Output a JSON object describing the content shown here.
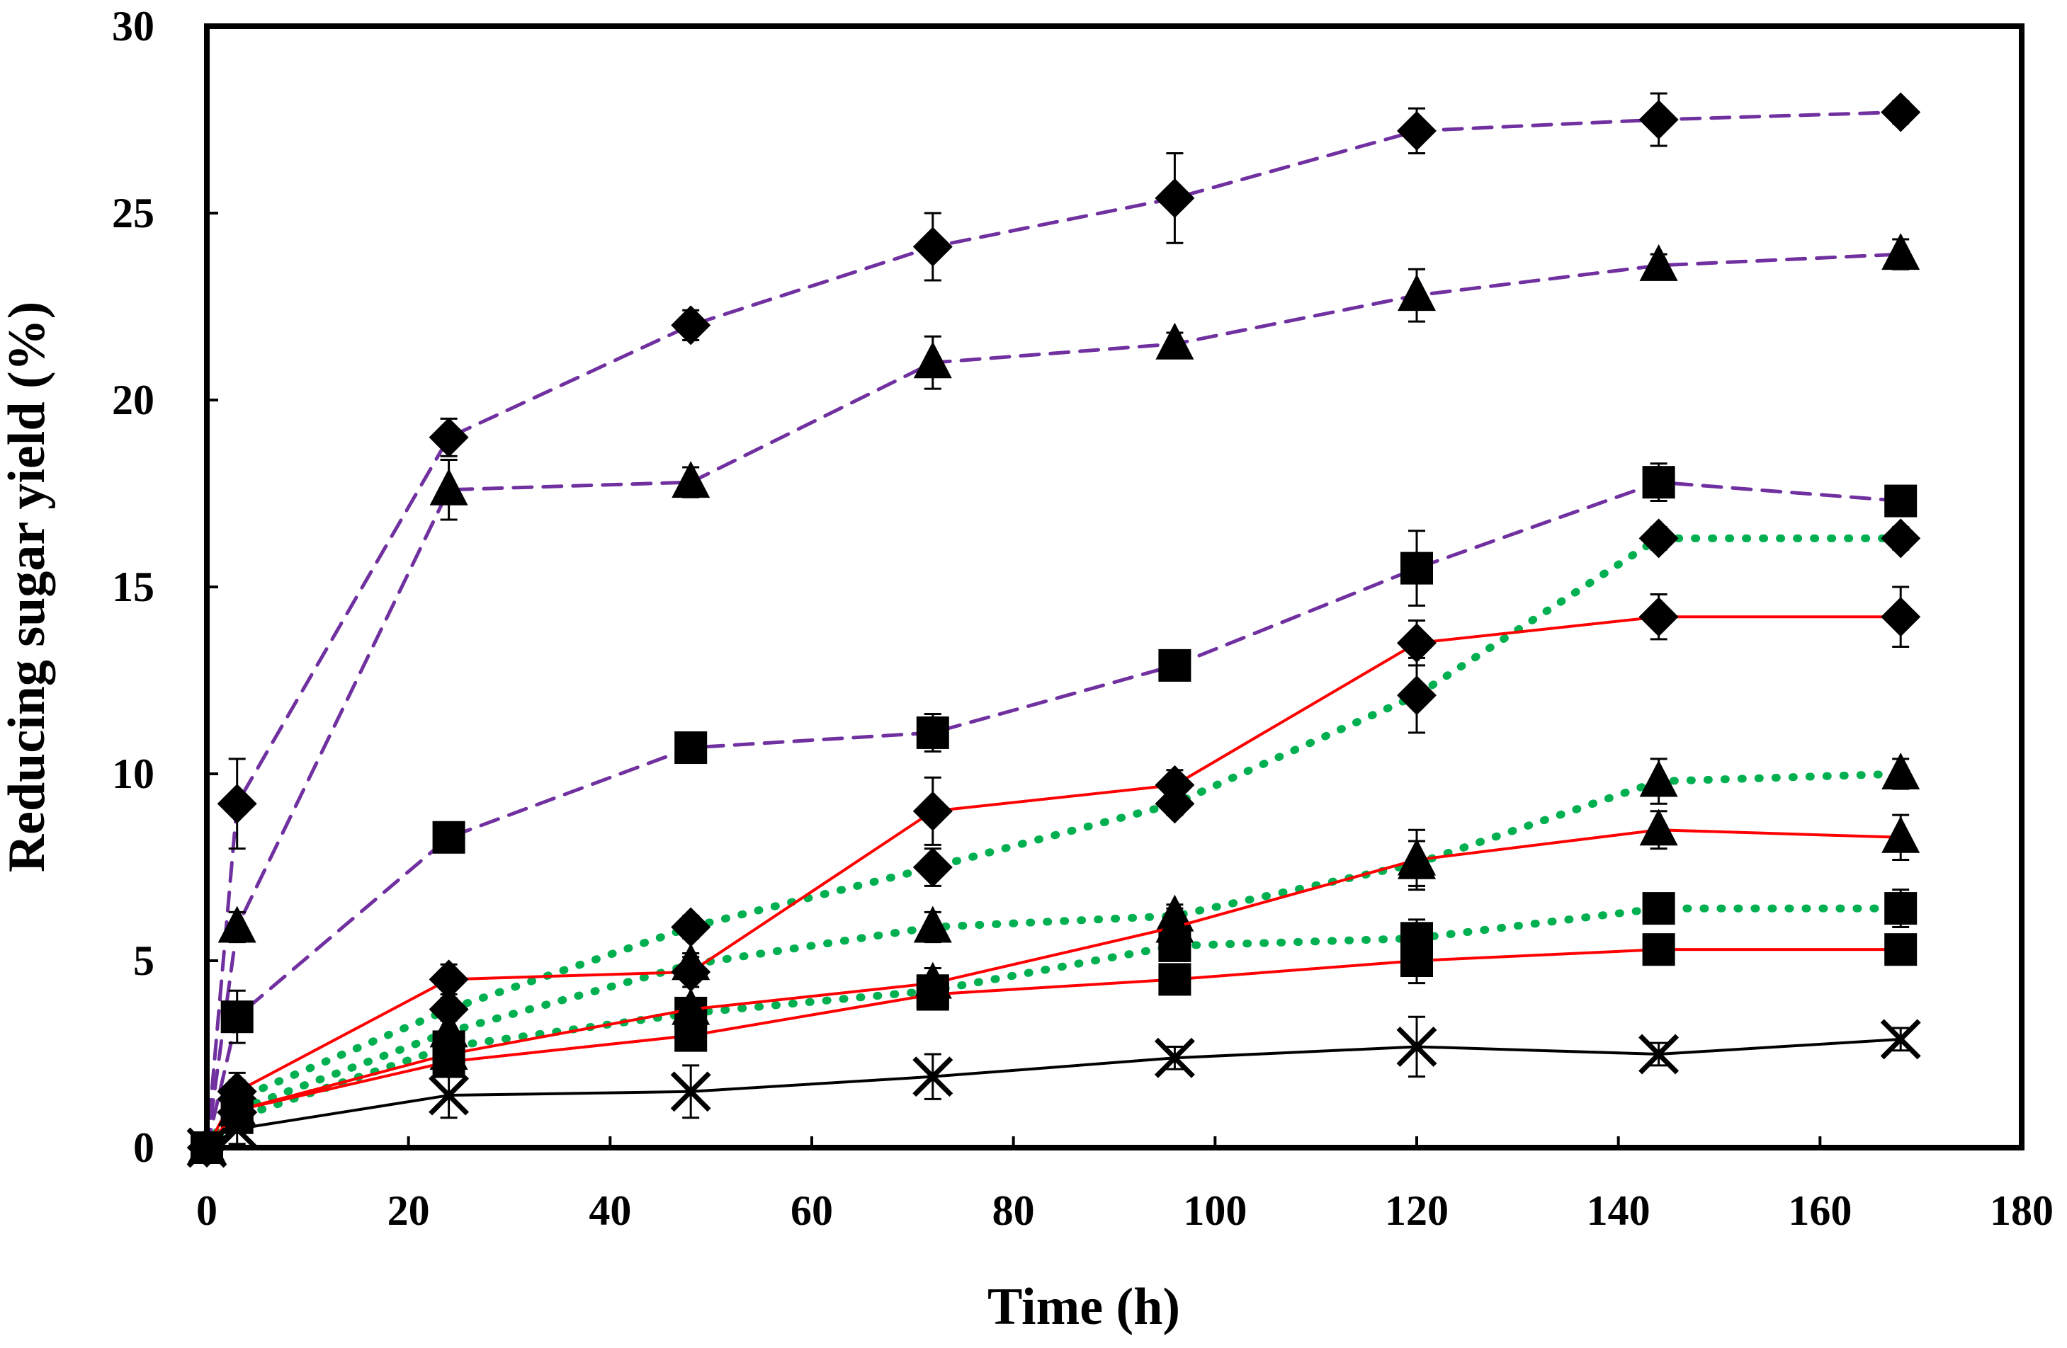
{
  "chart_data": {
    "type": "line",
    "title": "",
    "xlabel": "Time (h)",
    "ylabel": "Reducing sugar yield (%)",
    "xlim": [
      0,
      180
    ],
    "ylim": [
      0,
      30
    ],
    "xticks": [
      0,
      20,
      40,
      60,
      80,
      100,
      120,
      140,
      160,
      180
    ],
    "yticks": [
      0,
      5,
      10,
      15,
      20,
      25,
      30
    ],
    "x": [
      0,
      3,
      24,
      48,
      72,
      96,
      120,
      144,
      168
    ],
    "colors": {
      "purple": "#7030a0",
      "green": "#00b050",
      "red": "#ff0000",
      "black": "#000000"
    },
    "series": [
      {
        "name": "purple-diamond",
        "color": "#7030a0",
        "style": "dashed",
        "marker": "diamond",
        "values": [
          0,
          9.2,
          19.0,
          22.0,
          24.1,
          25.4,
          27.2,
          27.5,
          27.7
        ],
        "errors": [
          0,
          1.2,
          0.5,
          0.4,
          0.9,
          1.2,
          0.6,
          0.7,
          0.3
        ]
      },
      {
        "name": "purple-triangle",
        "color": "#7030a0",
        "style": "dashed",
        "marker": "triangle",
        "values": [
          0,
          5.9,
          17.6,
          17.8,
          21.0,
          21.5,
          22.8,
          23.6,
          23.9
        ],
        "errors": [
          0,
          0.4,
          0.8,
          0.4,
          0.7,
          0.3,
          0.7,
          0.3,
          0.4
        ]
      },
      {
        "name": "purple-square",
        "color": "#7030a0",
        "style": "dashed",
        "marker": "square",
        "values": [
          0,
          3.5,
          8.3,
          10.7,
          11.1,
          12.9,
          15.5,
          17.8,
          17.3
        ],
        "errors": [
          0,
          0.7,
          0.2,
          0.3,
          0.5,
          0.4,
          1.0,
          0.5,
          0.3
        ]
      },
      {
        "name": "green-diamond",
        "color": "#00b050",
        "style": "dotted",
        "marker": "diamond",
        "values": [
          0,
          1.3,
          3.7,
          5.9,
          7.5,
          9.2,
          12.1,
          16.3,
          16.3
        ],
        "errors": [
          0,
          0.5,
          0.3,
          0.3,
          0.5,
          0.3,
          1.0,
          0.3,
          0.3
        ]
      },
      {
        "name": "green-triangle",
        "color": "#00b050",
        "style": "dotted",
        "marker": "triangle",
        "values": [
          0,
          1.0,
          3.1,
          4.9,
          5.9,
          6.2,
          7.6,
          9.8,
          10.0
        ],
        "errors": [
          0,
          0.4,
          0.3,
          0.3,
          0.4,
          0.3,
          0.6,
          0.6,
          0.4
        ]
      },
      {
        "name": "green-square",
        "color": "#00b050",
        "style": "dotted",
        "marker": "square",
        "values": [
          0,
          0.8,
          2.7,
          3.6,
          4.2,
          5.4,
          5.6,
          6.4,
          6.4
        ],
        "errors": [
          0,
          0.4,
          0.2,
          0.3,
          0.4,
          0.3,
          0.5,
          0.3,
          0.5
        ]
      },
      {
        "name": "red-diamond",
        "color": "#ff0000",
        "style": "solid",
        "marker": "diamond",
        "values": [
          0,
          1.5,
          4.5,
          4.7,
          9.0,
          9.7,
          13.5,
          14.2,
          14.2
        ],
        "errors": [
          0,
          0.5,
          0.4,
          0.4,
          0.9,
          0.4,
          0.6,
          0.6,
          0.8
        ]
      },
      {
        "name": "red-triangle",
        "color": "#ff0000",
        "style": "solid",
        "marker": "triangle",
        "values": [
          0,
          1.0,
          2.5,
          3.7,
          4.4,
          5.9,
          7.7,
          8.5,
          8.3
        ],
        "errors": [
          0,
          0.4,
          0.3,
          0.3,
          0.4,
          0.5,
          0.8,
          0.5,
          0.6
        ]
      },
      {
        "name": "red-square",
        "color": "#ff0000",
        "style": "solid",
        "marker": "square",
        "values": [
          0,
          1.0,
          2.3,
          3.0,
          4.1,
          4.5,
          5.0,
          5.3,
          5.3
        ],
        "errors": [
          0,
          0.4,
          0.3,
          0.3,
          0.4,
          0.3,
          0.6,
          0.3,
          0.3
        ]
      },
      {
        "name": "black-cross",
        "color": "#000000",
        "style": "solid",
        "marker": "cross",
        "values": [
          0,
          0.5,
          1.4,
          1.5,
          1.9,
          2.4,
          2.7,
          2.5,
          2.9
        ],
        "errors": [
          0,
          0.4,
          0.6,
          0.7,
          0.6,
          0.3,
          0.8,
          0.3,
          0.3
        ]
      }
    ]
  }
}
